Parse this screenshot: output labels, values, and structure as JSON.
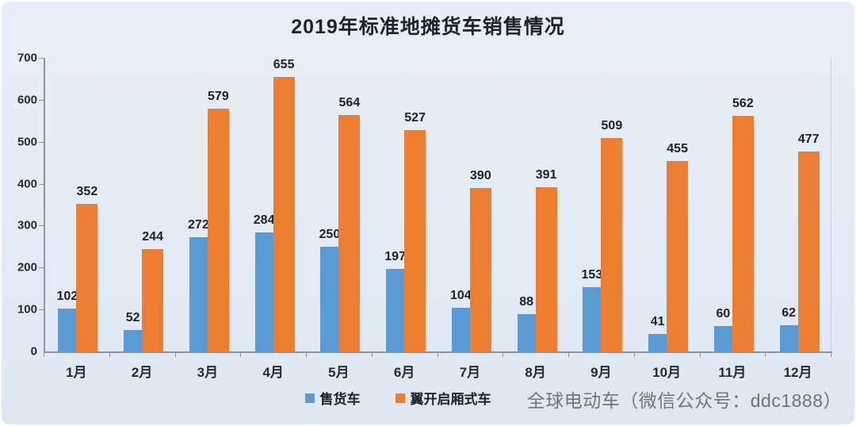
{
  "title": "2019年标准地摊货车销售情况",
  "watermark": "全球电动车（微信公众号：ddc1888）",
  "colors": {
    "series_blue": "#5B9BD5",
    "series_orange": "#ED7D31",
    "background": "#E3ECF6",
    "axis": "#8795A5",
    "label_text": "#1C222C",
    "watermark_gray": "#6D7580"
  },
  "chart_data": {
    "type": "bar",
    "title": "2019年标准地摊货车销售情况",
    "categories": [
      "1月",
      "2月",
      "3月",
      "4月",
      "5月",
      "6月",
      "7月",
      "8月",
      "9月",
      "10月",
      "11月",
      "12月"
    ],
    "series": [
      {
        "name": "售货车",
        "color": "#5B9BD5",
        "values": [
          102,
          52,
          272,
          284,
          250,
          197,
          104,
          88,
          153,
          41,
          60,
          62
        ]
      },
      {
        "name": "翼开启厢式车",
        "color": "#ED7D31",
        "values": [
          352,
          244,
          579,
          655,
          564,
          527,
          390,
          391,
          509,
          455,
          562,
          477
        ]
      }
    ],
    "xlabel": "",
    "ylabel": "",
    "ylim": [
      0,
      700
    ],
    "ytick_step": 100,
    "grid": false,
    "legend_position": "bottom",
    "data_labels": true
  }
}
